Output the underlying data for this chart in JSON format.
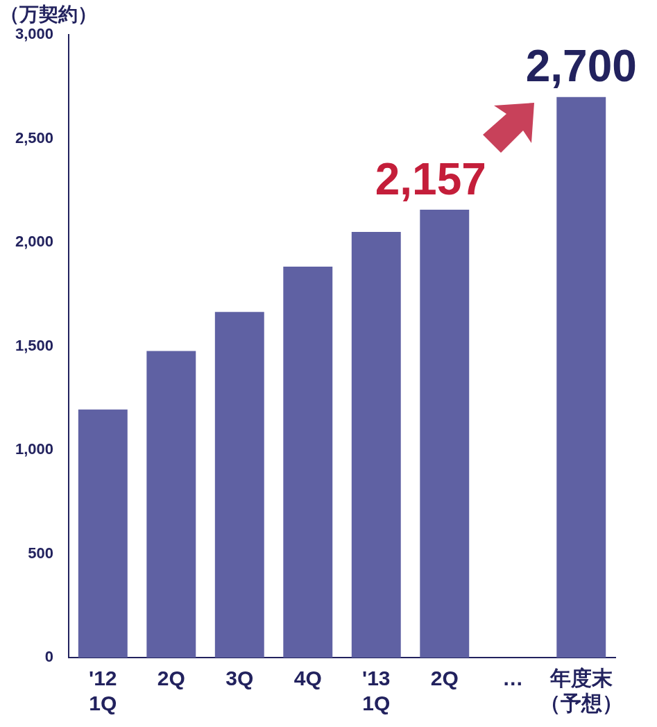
{
  "chart_data": {
    "type": "bar",
    "ylabel": "（万契約）",
    "categories": [
      "'12\n1Q",
      "2Q",
      "3Q",
      "4Q",
      "'13\n1Q",
      "2Q",
      "…",
      "年度末（予想）"
    ],
    "values": [
      1195,
      1477,
      1665,
      1883,
      2050,
      2157,
      null,
      2700
    ],
    "color": "#5f61a3",
    "value_labels": [
      null,
      null,
      null,
      null,
      null,
      "2,157",
      null,
      "2,700"
    ],
    "ylim": [
      0,
      3000
    ],
    "yticks": [
      0,
      500,
      {
        "value": 1000,
        "label": "1,000"
      },
      {
        "value": 1500,
        "label": "1,500"
      },
      {
        "value": 2000,
        "label": "2,000"
      },
      {
        "value": 2500,
        "label": "2,500"
      },
      {
        "value": 3000,
        "label": "3,000"
      }
    ],
    "grid": false,
    "legend": false
  }
}
